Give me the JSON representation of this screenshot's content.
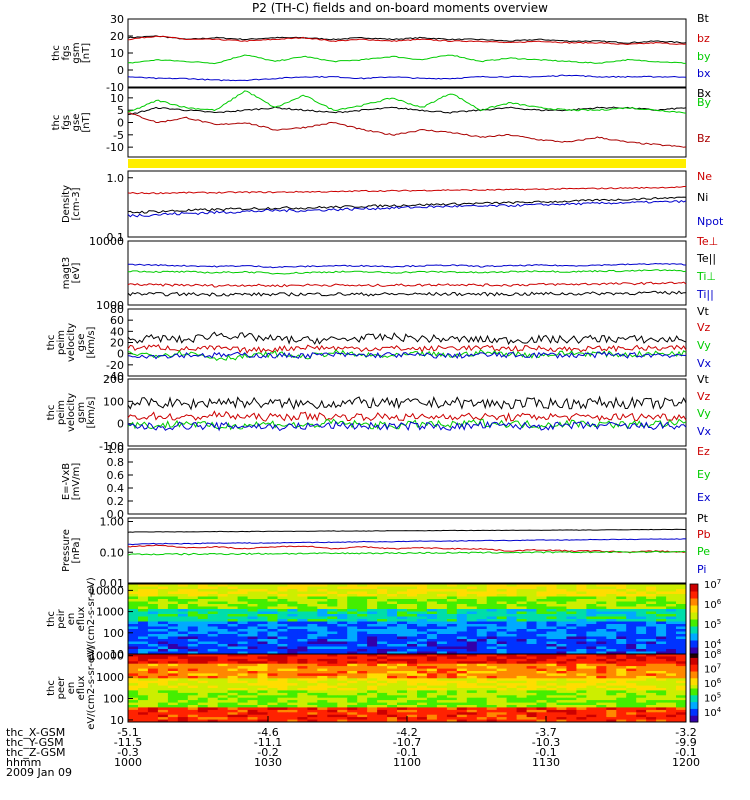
{
  "title": "P2 (TH-C) fields and on-board moments overview",
  "chart_data": [
    {
      "type": "line",
      "ylabel": "thc fgs gsm [nT]",
      "ylim": [
        -10,
        30
      ],
      "yticks": [
        "-10",
        "0",
        "10",
        "20",
        "30"
      ],
      "series": [
        {
          "name": "Bt",
          "color": "#000000",
          "values": [
            19,
            20,
            18,
            19,
            18,
            19,
            19,
            18,
            19,
            18,
            19,
            18,
            18,
            17,
            18,
            17,
            17,
            16,
            17,
            16
          ]
        },
        {
          "name": "bz",
          "color": "#cc0000",
          "values": [
            18,
            20,
            18,
            18,
            17,
            18,
            19,
            17,
            18,
            17,
            18,
            17,
            17,
            16,
            17,
            16,
            16,
            15,
            16,
            15
          ]
        },
        {
          "name": "by",
          "color": "#00cc00",
          "values": [
            4,
            6,
            5,
            4,
            9,
            5,
            8,
            5,
            6,
            8,
            6,
            9,
            5,
            7,
            6,
            5,
            4,
            6,
            5,
            4
          ]
        },
        {
          "name": "bx",
          "color": "#0000cc",
          "values": [
            -4,
            -5,
            -5,
            -6,
            -6,
            -5,
            -4,
            -4,
            -5,
            -4,
            -5,
            -5,
            -4,
            -4,
            -4,
            -3,
            -4,
            -4,
            -4,
            -4
          ]
        }
      ]
    },
    {
      "type": "line",
      "ylabel": "thc fgs gse [nT]",
      "ylim": [
        -14,
        14
      ],
      "yticks": [
        "-10",
        "-5",
        "0",
        "5",
        "10"
      ],
      "series": [
        {
          "name": "Bx",
          "color": "#000000",
          "values": [
            3,
            6,
            5,
            4,
            5,
            6,
            5,
            4,
            5,
            6,
            5,
            4,
            5,
            6,
            5,
            5,
            6,
            6,
            5,
            6
          ]
        },
        {
          "name": "By",
          "color": "#00cc00",
          "values": [
            4,
            9,
            6,
            5,
            13,
            6,
            11,
            5,
            7,
            10,
            6,
            12,
            5,
            8,
            6,
            5,
            5,
            6,
            5,
            4
          ]
        },
        {
          "name": "Bz",
          "color": "#aa0000",
          "values": [
            4,
            0,
            2,
            -1,
            0,
            -3,
            -2,
            0,
            -3,
            -5,
            -3,
            -4,
            -6,
            -5,
            -7,
            -8,
            -6,
            -8,
            -9,
            -10
          ]
        }
      ]
    },
    {
      "type": "line",
      "ylabel": "Density [cm-3]",
      "yscale": "log",
      "ylim": [
        0.1,
        1.3
      ],
      "yticks": [
        "0.1",
        "1.0"
      ],
      "series": [
        {
          "name": "Ne",
          "color": "#cc0000",
          "values": [
            0.55,
            0.55,
            0.56,
            0.56,
            0.57,
            0.57,
            0.58,
            0.58,
            0.6,
            0.6,
            0.61,
            0.62,
            0.62,
            0.63,
            0.64,
            0.65,
            0.66,
            0.67,
            0.68,
            0.7
          ]
        },
        {
          "name": "Ni",
          "color": "#000000",
          "values": [
            0.26,
            0.27,
            0.28,
            0.29,
            0.3,
            0.31,
            0.31,
            0.32,
            0.33,
            0.34,
            0.35,
            0.36,
            0.37,
            0.38,
            0.39,
            0.4,
            0.42,
            0.43,
            0.45,
            0.47
          ]
        },
        {
          "name": "Npot",
          "color": "#0000cc",
          "values": [
            0.23,
            0.24,
            0.25,
            0.26,
            0.27,
            0.28,
            0.28,
            0.29,
            0.3,
            0.31,
            0.32,
            0.33,
            0.33,
            0.34,
            0.35,
            0.36,
            0.37,
            0.38,
            0.39,
            0.4
          ]
        }
      ]
    },
    {
      "type": "line",
      "ylabel": "magt3 [eV]",
      "yscale": "log",
      "ylim": [
        1000,
        10000
      ],
      "yticks": [
        "1000",
        "10000"
      ],
      "series": [
        {
          "name": "Te⊥",
          "color": "#cc0000",
          "values": [
            2100,
            2050,
            2050,
            2000,
            2050,
            2000,
            2050,
            2050,
            2000,
            2050,
            2050,
            2100,
            2050,
            2050,
            2100,
            2100,
            2150,
            2150,
            2200,
            2200
          ]
        },
        {
          "name": "Te||",
          "color": "#000000",
          "values": [
            1500,
            1480,
            1480,
            1470,
            1470,
            1460,
            1480,
            1480,
            1470,
            1480,
            1480,
            1490,
            1480,
            1480,
            1500,
            1500,
            1520,
            1530,
            1550,
            1560
          ]
        },
        {
          "name": "Ti⊥",
          "color": "#00cc00",
          "values": [
            3400,
            3300,
            3300,
            3200,
            3300,
            3100,
            3200,
            3300,
            3300,
            3200,
            3300,
            3300,
            3200,
            3300,
            3400,
            3300,
            3400,
            3400,
            3500,
            3400
          ]
        },
        {
          "name": "Ti||",
          "color": "#0000cc",
          "values": [
            4300,
            4200,
            4100,
            4000,
            4100,
            3900,
            4000,
            4100,
            4100,
            4000,
            4100,
            4200,
            4000,
            4100,
            4200,
            4100,
            4200,
            4300,
            4400,
            4300
          ]
        }
      ]
    },
    {
      "type": "line",
      "ylabel": "thc peim velocity gse [km/s]",
      "ylim": [
        -40,
        80
      ],
      "yticks": [
        "-40",
        "-20",
        "0",
        "20",
        "40",
        "60",
        "80"
      ],
      "series": [
        {
          "name": "Vt",
          "color": "#000000",
          "values": [
            25,
            28,
            24,
            35,
            30,
            26,
            24,
            25,
            28,
            30,
            27,
            26,
            25,
            24,
            26,
            25,
            27,
            26,
            25,
            26
          ]
        },
        {
          "name": "Vz",
          "color": "#cc0000",
          "values": [
            10,
            12,
            8,
            10,
            6,
            8,
            12,
            10,
            9,
            10,
            8,
            11,
            10,
            9,
            10,
            8,
            9,
            10,
            9,
            10
          ]
        },
        {
          "name": "Vy",
          "color": "#00cc00",
          "values": [
            0,
            -2,
            2,
            -8,
            -5,
            0,
            -6,
            2,
            -3,
            -5,
            0,
            -4,
            2,
            0,
            -3,
            1,
            0,
            -2,
            0,
            1
          ]
        },
        {
          "name": "Vx",
          "color": "#0000cc",
          "values": [
            -2,
            -4,
            -2,
            -3,
            -2,
            -4,
            -3,
            -2,
            -3,
            -2,
            -3,
            -4,
            -2,
            -3,
            -2,
            -3,
            -2,
            -3,
            -2,
            -3
          ]
        }
      ]
    },
    {
      "type": "line",
      "ylabel": "thc peim velocity gsm [km/s]",
      "ylim": [
        -100,
        200
      ],
      "yticks": [
        "-100",
        "0",
        "100",
        "200"
      ],
      "series": [
        {
          "name": "Vt",
          "color": "#000000",
          "values": [
            90,
            95,
            85,
            100,
            95,
            90,
            88,
            92,
            95,
            90,
            92,
            95,
            90,
            88,
            92,
            90,
            95,
            92,
            90,
            92
          ]
        },
        {
          "name": "Vz",
          "color": "#cc0000",
          "values": [
            30,
            35,
            25,
            40,
            30,
            28,
            35,
            30,
            32,
            30,
            28,
            35,
            30,
            28,
            32,
            30,
            28,
            30,
            32,
            30
          ]
        },
        {
          "name": "Vy",
          "color": "#00cc00",
          "values": [
            0,
            -10,
            5,
            -15,
            -5,
            0,
            -10,
            5,
            -5,
            -10,
            0,
            -8,
            5,
            0,
            -5,
            2,
            0,
            -5,
            0,
            2
          ]
        },
        {
          "name": "Vx",
          "color": "#0000cc",
          "values": [
            -10,
            -15,
            -8,
            -12,
            -10,
            -15,
            -12,
            -8,
            -10,
            -12,
            -10,
            -15,
            -8,
            -10,
            -12,
            -10,
            -8,
            -12,
            -10,
            -12
          ]
        }
      ]
    },
    {
      "type": "line",
      "ylabel": "E=-VxB [mV/m]",
      "ylim": [
        0,
        1
      ],
      "yticks": [
        "0.0",
        "0.2",
        "0.4",
        "0.6",
        "0.8",
        "1.0"
      ],
      "series": [
        {
          "name": "Ez",
          "color": "#cc0000",
          "values": []
        },
        {
          "name": "Ey",
          "color": "#00cc00",
          "values": []
        },
        {
          "name": "Ex",
          "color": "#0000cc",
          "values": []
        }
      ]
    },
    {
      "type": "line",
      "ylabel": "Pressure [nPa]",
      "yscale": "log",
      "ylim": [
        0.01,
        1.3
      ],
      "yticks": [
        "0.01",
        "0.10",
        "1.00"
      ],
      "series": [
        {
          "name": "Pt",
          "color": "#000000",
          "values": [
            0.45,
            0.46,
            0.46,
            0.47,
            0.47,
            0.48,
            0.48,
            0.49,
            0.49,
            0.5,
            0.5,
            0.51,
            0.51,
            0.52,
            0.52,
            0.53,
            0.53,
            0.54,
            0.55,
            0.55
          ]
        },
        {
          "name": "Pb",
          "color": "#cc0000",
          "values": [
            0.15,
            0.17,
            0.14,
            0.15,
            0.13,
            0.15,
            0.16,
            0.13,
            0.15,
            0.13,
            0.14,
            0.13,
            0.13,
            0.11,
            0.12,
            0.11,
            0.11,
            0.1,
            0.11,
            0.1
          ]
        },
        {
          "name": "Pe",
          "color": "#00cc00",
          "values": [
            0.085,
            0.086,
            0.087,
            0.088,
            0.089,
            0.09,
            0.091,
            0.092,
            0.093,
            0.094,
            0.095,
            0.096,
            0.097,
            0.098,
            0.099,
            0.1,
            0.101,
            0.102,
            0.103,
            0.104
          ]
        },
        {
          "name": "Pi",
          "color": "#0000cc",
          "values": [
            0.18,
            0.19,
            0.19,
            0.2,
            0.2,
            0.2,
            0.21,
            0.21,
            0.22,
            0.22,
            0.23,
            0.23,
            0.24,
            0.24,
            0.25,
            0.25,
            0.26,
            0.26,
            0.27,
            0.27
          ]
        }
      ]
    },
    {
      "type": "heatmap",
      "ylabel": "thc peir en eflux eV/(cm2-s-sr-eV)",
      "yscale": "log",
      "ylim": [
        10,
        20000
      ],
      "yticks": [
        "10",
        "100",
        "1000",
        "10000"
      ],
      "colorbar": [
        "10^4",
        "10^5",
        "10^6",
        "10^7"
      ]
    },
    {
      "type": "heatmap",
      "ylabel": "thc peer en eflux eV/(cm2-s-sr-eV)",
      "yscale": "log",
      "ylim": [
        8,
        12000
      ],
      "yticks": [
        "10",
        "100",
        "1000",
        "10000"
      ],
      "colorbar": [
        "10^4",
        "10^5",
        "10^6",
        "10^7",
        "10^8"
      ]
    }
  ],
  "x_axis": {
    "rows": [
      {
        "label": "thc_X-GSM",
        "values": [
          "-5.1",
          "-4.6",
          "-4.2",
          "-3.7",
          "-3.2"
        ]
      },
      {
        "label": "thc_Y-GSM",
        "values": [
          "-11.5",
          "-11.1",
          "-10.7",
          "-10.3",
          "-9.9"
        ]
      },
      {
        "label": "thc_Z-GSM",
        "values": [
          "-0.3",
          "-0.2",
          "-0.1",
          "-0.1",
          "-0.1"
        ]
      },
      {
        "label": "hhmm",
        "values": [
          "1000",
          "1030",
          "1100",
          "1130",
          "1200"
        ]
      }
    ],
    "date": "2009 Jan 09"
  }
}
